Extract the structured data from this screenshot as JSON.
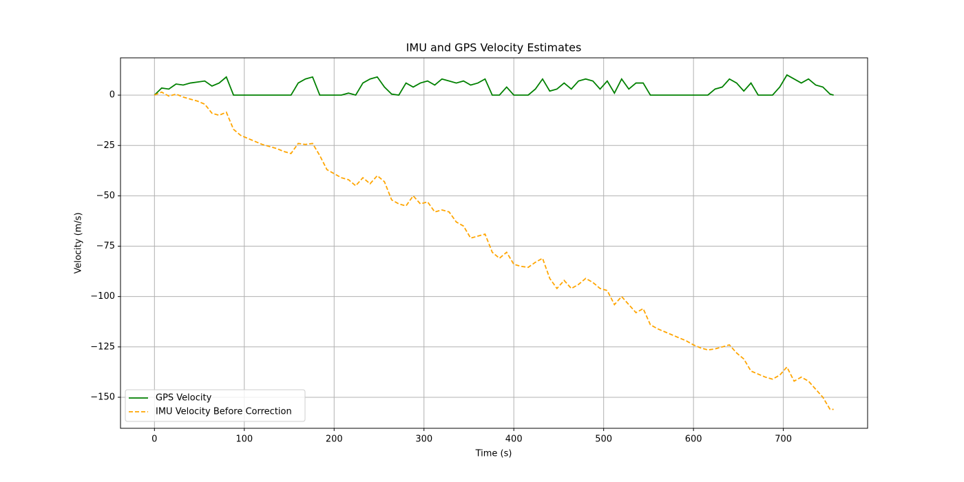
{
  "chart_data": {
    "type": "line",
    "title": "IMU and GPS Velocity Estimates",
    "x_label": "Time (s)",
    "y_label": "Velocity (m/s)",
    "x": [
      0,
      8,
      16,
      24,
      32,
      40,
      48,
      56,
      64,
      72,
      80,
      88,
      96,
      104,
      112,
      120,
      128,
      136,
      144,
      152,
      160,
      168,
      176,
      184,
      192,
      200,
      208,
      216,
      224,
      232,
      240,
      248,
      256,
      264,
      272,
      280,
      288,
      296,
      304,
      312,
      320,
      328,
      336,
      344,
      352,
      360,
      368,
      376,
      384,
      392,
      400,
      408,
      416,
      424,
      432,
      440,
      448,
      456,
      464,
      472,
      480,
      488,
      496,
      504,
      512,
      520,
      528,
      536,
      544,
      552,
      560,
      568,
      576,
      584,
      592,
      600,
      608,
      616,
      624,
      632,
      640,
      648,
      656,
      664,
      672,
      680,
      688,
      696,
      704,
      712,
      720,
      728,
      736,
      744,
      752,
      756
    ],
    "series": [
      {
        "name": "GPS Velocity",
        "color": "#008000",
        "dash": false,
        "values": [
          0,
          3.5,
          3,
          5.5,
          5,
          6,
          6.5,
          7,
          4.5,
          6,
          9,
          0,
          0,
          0,
          0,
          0,
          0,
          0,
          0,
          0,
          6,
          8,
          9,
          0,
          0,
          0,
          0,
          1,
          0,
          6,
          8,
          9,
          4,
          0.5,
          0,
          6,
          4,
          6,
          7,
          5,
          8,
          7,
          6,
          7,
          5,
          6,
          8,
          0,
          0,
          4,
          0,
          0,
          0,
          3,
          8,
          2,
          3,
          6,
          3,
          7,
          8,
          7,
          3,
          7,
          1,
          8,
          3,
          6,
          6,
          0,
          0,
          0,
          0,
          0,
          0,
          0,
          0,
          0,
          3,
          4,
          8,
          6,
          2,
          6,
          0,
          0,
          0,
          4,
          10,
          8,
          6,
          8,
          5,
          4,
          0.5,
          0
        ]
      },
      {
        "name": "IMU Velocity Before Correction",
        "color": "#ffa500",
        "dash": true,
        "values": [
          0,
          1.5,
          -0.5,
          0.5,
          -1,
          -2,
          -3,
          -4.5,
          -9,
          -10,
          -8.5,
          -17,
          -20,
          -21.5,
          -23,
          -24.5,
          -25.5,
          -26.5,
          -28,
          -29,
          -24,
          -24.5,
          -24,
          -30,
          -37,
          -39,
          -41,
          -42,
          -45,
          -41,
          -44,
          -40,
          -43,
          -52,
          -54,
          -55,
          -50,
          -54,
          -53,
          -58,
          -57,
          -58,
          -63,
          -65,
          -71,
          -70,
          -69,
          -78,
          -81,
          -78,
          -84,
          -85,
          -85.5,
          -83,
          -81,
          -91,
          -96,
          -92,
          -96,
          -94,
          -91,
          -93,
          -96,
          -97,
          -104,
          -100,
          -104,
          -108,
          -106,
          -114,
          -116,
          -117.5,
          -119,
          -120.5,
          -122,
          -124,
          -125.5,
          -126.5,
          -126,
          -125,
          -124,
          -128,
          -131,
          -137,
          -138.5,
          -140,
          -141,
          -139,
          -135,
          -142,
          -140,
          -142,
          -146,
          -150,
          -156,
          -156
        ]
      }
    ],
    "xlim": [
      -37.8,
      793.8
    ],
    "ylim": [
      -165.4,
      18.5
    ],
    "xticks": [
      0,
      100,
      200,
      300,
      400,
      500,
      600,
      700
    ],
    "yticks": [
      {
        "value": -150,
        "label": "−150"
      },
      {
        "value": -125,
        "label": "−125"
      },
      {
        "value": -100,
        "label": "−100"
      },
      {
        "value": -75,
        "label": "−75"
      },
      {
        "value": -50,
        "label": "−50"
      },
      {
        "value": -25,
        "label": "−25"
      },
      0
    ],
    "grid": true,
    "legend": "lower left"
  }
}
